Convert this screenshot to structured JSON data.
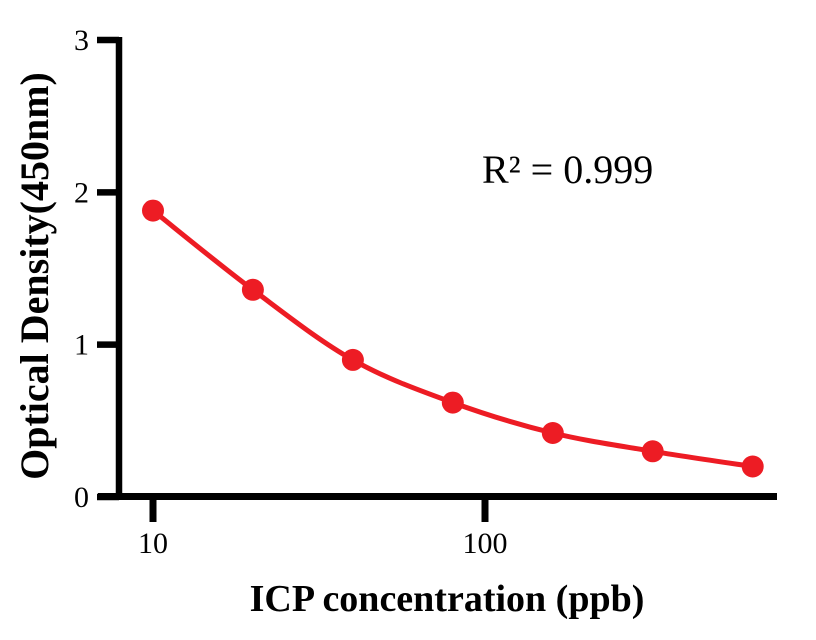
{
  "figure": {
    "background": "#ffffff"
  },
  "chart_data": {
    "type": "line",
    "title": "",
    "xlabel": "ICP concentration (ppb)",
    "ylabel": "Optical Density(450nm)",
    "annotation": "R² = 0.999",
    "x_scale": "log",
    "x": [
      10,
      20,
      40,
      80,
      160,
      320,
      640
    ],
    "y": [
      1.88,
      1.36,
      0.9,
      0.62,
      0.42,
      0.3,
      0.2
    ],
    "x_ticks": [
      {
        "value": 10,
        "label": "10"
      },
      {
        "value": 100,
        "label": "100"
      }
    ],
    "y_ticks": [
      {
        "value": 0,
        "label": "0"
      },
      {
        "value": 1,
        "label": "1"
      },
      {
        "value": 2,
        "label": "2"
      },
      {
        "value": 3,
        "label": "3"
      }
    ],
    "ylim": [
      0,
      3
    ],
    "grid": false,
    "legend": "none",
    "marker": "circle",
    "marker_color": "#ED1C24",
    "line_color": "#ED1C24",
    "axis_color": "#000000"
  }
}
